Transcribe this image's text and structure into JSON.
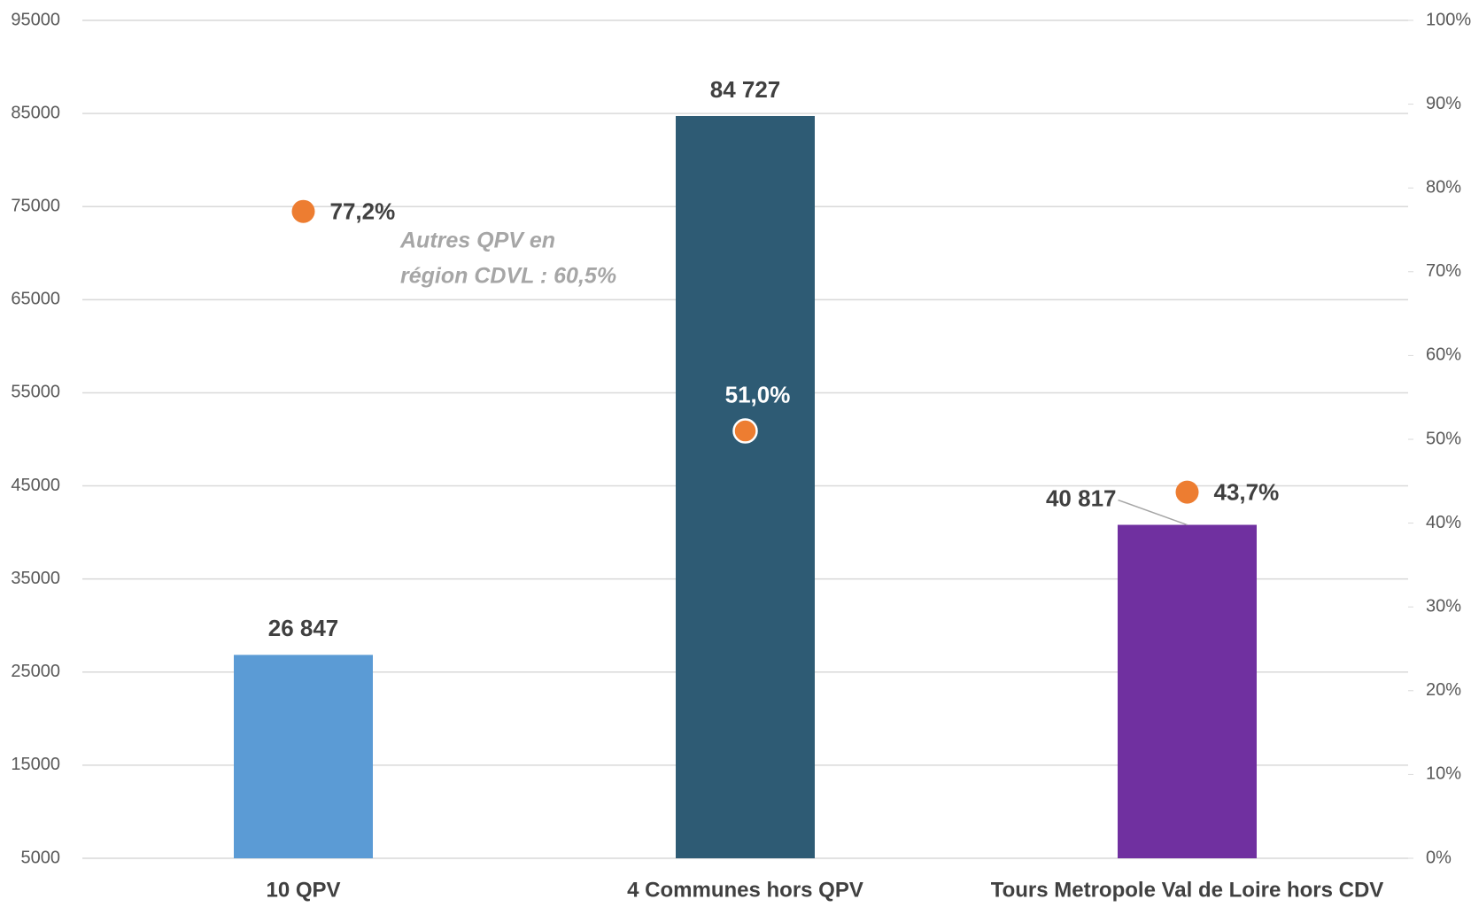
{
  "chart_data": {
    "type": "bar",
    "categories": [
      "10 QPV",
      "4 Communes hors QPV",
      "Tours Metropole Val de Loire hors CDV"
    ],
    "values": [
      26847,
      84727,
      40817
    ],
    "value_labels": [
      "26 847",
      "84 727",
      "40 817"
    ],
    "colors": [
      "#5b9bd5",
      "#2e5b74",
      "#7030a0"
    ],
    "ylim": [
      5000,
      95000
    ],
    "yticks": [
      5000,
      15000,
      25000,
      35000,
      45000,
      55000,
      65000,
      75000,
      85000,
      95000
    ],
    "y2lim": [
      0,
      100
    ],
    "y2ticks": [
      {
        "value": 0,
        "label": "0%"
      },
      {
        "value": 10,
        "label": "10%"
      },
      {
        "value": 20,
        "label": "20%"
      },
      {
        "value": 30,
        "label": "30%"
      },
      {
        "value": 40,
        "label": "40%"
      },
      {
        "value": 50,
        "label": "50%"
      },
      {
        "value": 60,
        "label": "60%"
      },
      {
        "value": 70,
        "label": "70%"
      },
      {
        "value": 80,
        "label": "80%"
      },
      {
        "value": 90,
        "label": "90%"
      },
      {
        "value": 100,
        "label": "100%"
      }
    ],
    "grid": true,
    "overlay": {
      "type": "scatter",
      "axis": "y2",
      "color": "#ed7d31",
      "values": [
        77.2,
        51.0,
        43.7
      ],
      "value_labels": [
        "77,2%",
        "51,0%",
        "43,7%"
      ]
    },
    "annotation": [
      "Autres QPV en",
      "région CDVL : 60,5%"
    ]
  }
}
